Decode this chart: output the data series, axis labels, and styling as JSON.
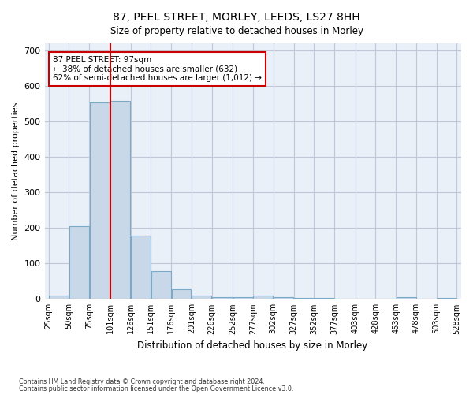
{
  "title": "87, PEEL STREET, MORLEY, LEEDS, LS27 8HH",
  "subtitle": "Size of property relative to detached houses in Morley",
  "xlabel": "Distribution of detached houses by size in Morley",
  "ylabel": "Number of detached properties",
  "footnote1": "Contains HM Land Registry data © Crown copyright and database right 2024.",
  "footnote2": "Contains public sector information licensed under the Open Government Licence v3.0.",
  "bar_color": "#c8d8e8",
  "bar_edge_color": "#7aaac8",
  "grid_color": "#c0c8d8",
  "background_color": "#eaf0f8",
  "property_line_x": 101,
  "annotation_text": "87 PEEL STREET: 97sqm\n← 38% of detached houses are smaller (632)\n62% of semi-detached houses are larger (1,012) →",
  "annotation_box_color": "#ffffff",
  "annotation_border_color": "#cc0000",
  "vline_color": "#cc0000",
  "bins": [
    25,
    50,
    75,
    101,
    126,
    151,
    176,
    201,
    226,
    252,
    277,
    302,
    327,
    352,
    377,
    403,
    428,
    453,
    478,
    503,
    528
  ],
  "bin_labels": [
    "25sqm",
    "50sqm",
    "75sqm",
    "101sqm",
    "126sqm",
    "151sqm",
    "176sqm",
    "201sqm",
    "226sqm",
    "252sqm",
    "277sqm",
    "302sqm",
    "327sqm",
    "352sqm",
    "377sqm",
    "403sqm",
    "428sqm",
    "453sqm",
    "478sqm",
    "503sqm",
    "528sqm"
  ],
  "bar_heights": [
    10,
    204,
    554,
    558,
    178,
    78,
    28,
    10,
    6,
    5,
    9,
    5,
    4,
    2,
    0,
    0,
    0,
    5,
    0,
    3
  ],
  "ylim": [
    0,
    720
  ],
  "yticks": [
    0,
    100,
    200,
    300,
    400,
    500,
    600,
    700
  ]
}
